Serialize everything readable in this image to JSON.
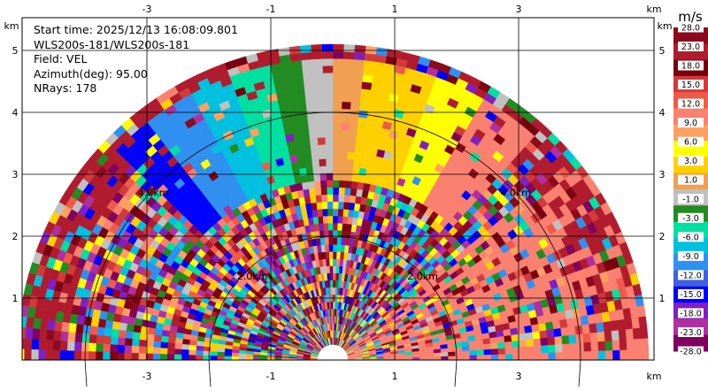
{
  "info": {
    "start_time": "Start time: 2025/12/13 16:08:09.801",
    "instrument": "WLS200s-181/WLS200s-181",
    "field": "Field: VEL",
    "azimuth": "Azimuth(deg): 95.00",
    "nrays": "NRays: 178"
  },
  "colorbar": {
    "unit": "m/s",
    "ticks": [
      "28.0",
      "23.0",
      "18.0",
      "15.0",
      "12.0",
      "9.0",
      "6.0",
      "3.0",
      "1.0",
      "-1.0",
      "-3.0",
      "-6.0",
      "-9.0",
      "-12.0",
      "-15.0",
      "-18.0",
      "-23.0",
      "-28.0"
    ],
    "colors": [
      "#8b0a1e",
      "#b01c2e",
      "#7a0010",
      "#d33a3a",
      "#f05a4a",
      "#fa8070",
      "#ffa060",
      "#ffff00",
      "#ffd000",
      "#f0a050",
      "#c0c0c0",
      "#228b22",
      "#00e0a0",
      "#00c0e0",
      "#3090f0",
      "#4060e0",
      "#0000ff",
      "#8020c0",
      "#b030a0",
      "#800060"
    ]
  },
  "chart_data": {
    "type": "heatmap",
    "description_free": true,
    "x_axis_unit": "km",
    "y_axis_unit": "km",
    "xlim": [
      -4.5,
      5.0
    ],
    "ylim": [
      0,
      6.0
    ],
    "x_ticks": [
      -3,
      -1,
      1,
      3
    ],
    "y_ticks": [
      1,
      2,
      3,
      4,
      5
    ],
    "range_ring_labels": [
      "4.0km",
      "2.0km",
      "2.0km",
      "4.0km"
    ],
    "grid": true
  }
}
